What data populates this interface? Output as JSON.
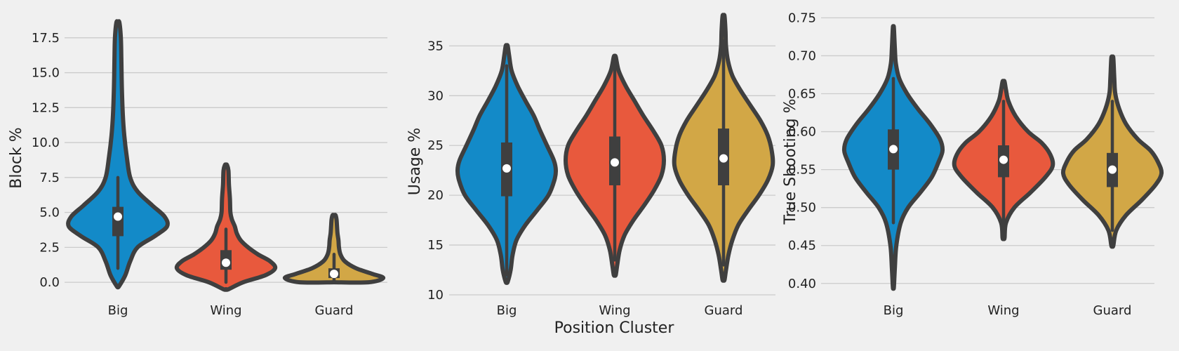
{
  "figure": {
    "background": "#f0f0f0",
    "xlabel": "Position Cluster"
  },
  "chart_data": [
    {
      "type": "violin",
      "categories": [
        "Big",
        "Wing",
        "Guard"
      ],
      "colors": [
        "#138ac8",
        "#e8593d",
        "#d2a746"
      ],
      "xlabel": "",
      "ylabel": "Block %",
      "ylim": [
        -0.9,
        19.2
      ],
      "yticks": [
        0.0,
        2.5,
        5.0,
        7.5,
        10.0,
        12.5,
        15.0,
        17.5
      ],
      "ytick_labels": [
        "0.0",
        "2.5",
        "5.0",
        "7.5",
        "10.0",
        "12.5",
        "15.0",
        "17.5"
      ],
      "grid": "horizontal",
      "series": [
        {
          "category": "Big",
          "min": -0.3,
          "max": 18.6,
          "q1": 3.3,
          "median": 4.7,
          "q3": 5.4,
          "whisker_low": 1.0,
          "whisker_high": 7.5,
          "density": [
            [
              -0.3,
              0.02
            ],
            [
              0.5,
              0.15
            ],
            [
              1.5,
              0.25
            ],
            [
              2.5,
              0.4
            ],
            [
              3.3,
              0.75
            ],
            [
              4.0,
              1.0
            ],
            [
              4.7,
              0.95
            ],
            [
              5.5,
              0.7
            ],
            [
              6.5,
              0.4
            ],
            [
              7.5,
              0.25
            ],
            [
              9.0,
              0.18
            ],
            [
              10.5,
              0.13
            ],
            [
              12.0,
              0.1
            ],
            [
              14.0,
              0.08
            ],
            [
              16.0,
              0.07
            ],
            [
              17.5,
              0.06
            ],
            [
              18.6,
              0.03
            ]
          ]
        },
        {
          "category": "Wing",
          "min": -0.5,
          "max": 8.4,
          "q1": 0.9,
          "median": 1.4,
          "q3": 2.3,
          "whisker_low": 0.0,
          "whisker_high": 3.8,
          "density": [
            [
              -0.5,
              0.05
            ],
            [
              0.0,
              0.35
            ],
            [
              0.5,
              0.8
            ],
            [
              1.0,
              1.0
            ],
            [
              1.5,
              0.9
            ],
            [
              2.0,
              0.65
            ],
            [
              2.5,
              0.45
            ],
            [
              3.0,
              0.3
            ],
            [
              3.5,
              0.22
            ],
            [
              4.0,
              0.18
            ],
            [
              4.5,
              0.12
            ],
            [
              5.0,
              0.09
            ],
            [
              6.0,
              0.08
            ],
            [
              7.0,
              0.06
            ],
            [
              8.0,
              0.05
            ],
            [
              8.4,
              0.02
            ]
          ]
        },
        {
          "category": "Guard",
          "min": 0.0,
          "max": 4.8,
          "q1": 0.3,
          "median": 0.6,
          "q3": 1.0,
          "whisker_low": 0.0,
          "whisker_high": 2.0,
          "density": [
            [
              0.0,
              0.7
            ],
            [
              0.3,
              1.0
            ],
            [
              0.6,
              0.78
            ],
            [
              1.0,
              0.45
            ],
            [
              1.5,
              0.22
            ],
            [
              2.0,
              0.13
            ],
            [
              2.5,
              0.1
            ],
            [
              3.0,
              0.09
            ],
            [
              3.5,
              0.07
            ],
            [
              4.0,
              0.06
            ],
            [
              4.5,
              0.05
            ],
            [
              4.8,
              0.03
            ]
          ]
        }
      ]
    },
    {
      "type": "violin",
      "categories": [
        "Big",
        "Wing",
        "Guard"
      ],
      "colors": [
        "#138ac8",
        "#e8593d",
        "#d2a746"
      ],
      "xlabel": "Position Cluster",
      "ylabel": "Usage %",
      "ylim": [
        10,
        38.2
      ],
      "yticks": [
        10,
        15,
        20,
        25,
        30,
        35
      ],
      "ytick_labels": [
        "10",
        "15",
        "20",
        "25",
        "30",
        "35"
      ],
      "grid": "horizontal",
      "series": [
        {
          "category": "Big",
          "min": 11.3,
          "max": 35.0,
          "q1": 19.9,
          "median": 22.7,
          "q3": 25.3,
          "whisker_low": 12.0,
          "whisker_high": 33.0,
          "density": [
            [
              11.3,
              0.02
            ],
            [
              12.5,
              0.08
            ],
            [
              14.0,
              0.12
            ],
            [
              15.5,
              0.2
            ],
            [
              17.0,
              0.38
            ],
            [
              18.5,
              0.62
            ],
            [
              20.0,
              0.85
            ],
            [
              21.5,
              0.97
            ],
            [
              22.5,
              1.0
            ],
            [
              23.5,
              0.96
            ],
            [
              25.0,
              0.82
            ],
            [
              26.5,
              0.68
            ],
            [
              28.0,
              0.55
            ],
            [
              29.5,
              0.38
            ],
            [
              31.0,
              0.22
            ],
            [
              32.5,
              0.1
            ],
            [
              34.0,
              0.05
            ],
            [
              35.0,
              0.02
            ]
          ]
        },
        {
          "category": "Wing",
          "min": 12.0,
          "max": 33.9,
          "q1": 21.0,
          "median": 23.3,
          "q3": 25.9,
          "whisker_low": 13.5,
          "whisker_high": 33.5,
          "density": [
            [
              12.0,
              0.02
            ],
            [
              13.0,
              0.05
            ],
            [
              14.5,
              0.1
            ],
            [
              16.0,
              0.2
            ],
            [
              17.5,
              0.38
            ],
            [
              19.0,
              0.6
            ],
            [
              20.5,
              0.8
            ],
            [
              22.0,
              0.95
            ],
            [
              23.5,
              1.0
            ],
            [
              25.0,
              0.95
            ],
            [
              26.5,
              0.78
            ],
            [
              28.0,
              0.58
            ],
            [
              29.5,
              0.4
            ],
            [
              31.0,
              0.22
            ],
            [
              32.5,
              0.08
            ],
            [
              33.9,
              0.02
            ]
          ]
        },
        {
          "category": "Guard",
          "min": 11.5,
          "max": 38.0,
          "q1": 21.0,
          "median": 23.7,
          "q3": 26.7,
          "whisker_low": 13.0,
          "whisker_high": 35.5,
          "density": [
            [
              11.5,
              0.02
            ],
            [
              12.5,
              0.05
            ],
            [
              14.0,
              0.1
            ],
            [
              15.5,
              0.18
            ],
            [
              17.0,
              0.3
            ],
            [
              18.5,
              0.5
            ],
            [
              20.0,
              0.72
            ],
            [
              21.5,
              0.9
            ],
            [
              23.0,
              1.0
            ],
            [
              24.5,
              0.98
            ],
            [
              26.0,
              0.9
            ],
            [
              27.5,
              0.75
            ],
            [
              29.0,
              0.55
            ],
            [
              30.5,
              0.35
            ],
            [
              32.0,
              0.18
            ],
            [
              33.5,
              0.09
            ],
            [
              35.0,
              0.05
            ],
            [
              36.5,
              0.04
            ],
            [
              38.0,
              0.02
            ]
          ]
        }
      ]
    },
    {
      "type": "violin",
      "categories": [
        "Big",
        "Wing",
        "Guard"
      ],
      "colors": [
        "#138ac8",
        "#e8593d",
        "#d2a746"
      ],
      "xlabel": "",
      "ylabel": "True Shooting %",
      "ylim": [
        0.385,
        0.755
      ],
      "yticks": [
        0.4,
        0.45,
        0.5,
        0.55,
        0.6,
        0.65,
        0.7,
        0.75
      ],
      "ytick_labels": [
        "0.40",
        "0.45",
        "0.50",
        "0.55",
        "0.60",
        "0.65",
        "0.70",
        "0.75"
      ],
      "grid": "horizontal",
      "series": [
        {
          "category": "Big",
          "min": 0.395,
          "max": 0.737,
          "q1": 0.55,
          "median": 0.577,
          "q3": 0.603,
          "whisker_low": 0.48,
          "whisker_high": 0.67,
          "density": [
            [
              0.395,
              0.01
            ],
            [
              0.42,
              0.03
            ],
            [
              0.45,
              0.06
            ],
            [
              0.48,
              0.15
            ],
            [
              0.5,
              0.3
            ],
            [
              0.52,
              0.55
            ],
            [
              0.54,
              0.78
            ],
            [
              0.56,
              0.92
            ],
            [
              0.575,
              1.0
            ],
            [
              0.59,
              0.95
            ],
            [
              0.61,
              0.75
            ],
            [
              0.63,
              0.5
            ],
            [
              0.65,
              0.28
            ],
            [
              0.67,
              0.12
            ],
            [
              0.69,
              0.05
            ],
            [
              0.71,
              0.03
            ],
            [
              0.737,
              0.01
            ]
          ]
        },
        {
          "category": "Wing",
          "min": 0.46,
          "max": 0.666,
          "q1": 0.54,
          "median": 0.563,
          "q3": 0.582,
          "whisker_low": 0.48,
          "whisker_high": 0.64,
          "density": [
            [
              0.46,
              0.02
            ],
            [
              0.48,
              0.05
            ],
            [
              0.5,
              0.22
            ],
            [
              0.52,
              0.55
            ],
            [
              0.54,
              0.85
            ],
            [
              0.555,
              1.0
            ],
            [
              0.57,
              0.95
            ],
            [
              0.585,
              0.78
            ],
            [
              0.6,
              0.5
            ],
            [
              0.62,
              0.25
            ],
            [
              0.64,
              0.1
            ],
            [
              0.655,
              0.05
            ],
            [
              0.666,
              0.02
            ]
          ]
        },
        {
          "category": "Guard",
          "min": 0.45,
          "max": 0.697,
          "q1": 0.527,
          "median": 0.55,
          "q3": 0.572,
          "whisker_low": 0.47,
          "whisker_high": 0.64,
          "density": [
            [
              0.45,
              0.02
            ],
            [
              0.47,
              0.08
            ],
            [
              0.49,
              0.28
            ],
            [
              0.51,
              0.6
            ],
            [
              0.53,
              0.88
            ],
            [
              0.545,
              1.0
            ],
            [
              0.56,
              0.93
            ],
            [
              0.575,
              0.78
            ],
            [
              0.59,
              0.52
            ],
            [
              0.61,
              0.28
            ],
            [
              0.63,
              0.14
            ],
            [
              0.65,
              0.06
            ],
            [
              0.67,
              0.04
            ],
            [
              0.697,
              0.02
            ]
          ]
        }
      ]
    }
  ]
}
